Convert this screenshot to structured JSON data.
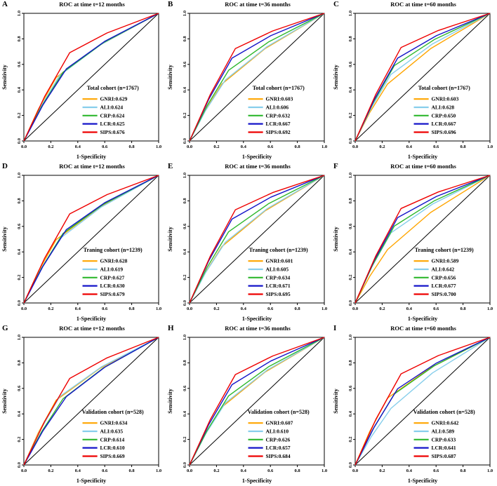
{
  "figure": {
    "background": "#ffffff"
  },
  "style": {
    "colors": {
      "GNRI": "#FFA500",
      "ALI": "#87CEEB",
      "CRP": "#2EB82E",
      "LCR": "#1414C8",
      "SIPS": "#EE0000",
      "diagonal": "#000000"
    }
  },
  "axis": {
    "xlabel": "1-Specificity",
    "ylabel": "Sensitivity",
    "ticks": [
      0,
      0.2,
      0.4,
      0.6,
      0.8,
      1.0
    ],
    "tick_labels": [
      "0.0",
      "0.2",
      "0.4",
      "0.6",
      "0.8",
      "1.0"
    ],
    "xlim": [
      0,
      1
    ],
    "ylim": [
      0,
      1
    ]
  },
  "chart_data": [
    {
      "letter": "A",
      "type": "line",
      "title": "ROC at time t=12 months",
      "cohort": "Total cohort (n=1767)",
      "series": [
        {
          "name": "GNRI",
          "auc": 0.629,
          "label": "GNRI:0.629"
        },
        {
          "name": "ALI",
          "auc": 0.624,
          "label": "ALI:0.624"
        },
        {
          "name": "CRP",
          "auc": 0.624,
          "label": "CRP:0.624"
        },
        {
          "name": "LCR",
          "auc": 0.625,
          "label": "LCR:0.625"
        },
        {
          "name": "SIPS",
          "auc": 0.676,
          "label": "SIPS:0.676"
        }
      ]
    },
    {
      "letter": "B",
      "type": "line",
      "title": "ROC at time t=36 months",
      "cohort": "Total cohort (n=1767)",
      "series": [
        {
          "name": "GNRI",
          "auc": 0.603,
          "label": "GNRI:0.603"
        },
        {
          "name": "ALI",
          "auc": 0.606,
          "label": "ALI:0.606"
        },
        {
          "name": "CRP",
          "auc": 0.632,
          "label": "CRP:0.632"
        },
        {
          "name": "LCR",
          "auc": 0.667,
          "label": "LCR:0.667"
        },
        {
          "name": "SIPS",
          "auc": 0.692,
          "label": "SIPS:0.692"
        }
      ]
    },
    {
      "letter": "C",
      "type": "line",
      "title": "ROC at time t=60 months",
      "cohort": "Total cohort (n=1767)",
      "series": [
        {
          "name": "GNRI",
          "auc": 0.603,
          "label": "GNRI:0.603"
        },
        {
          "name": "ALI",
          "auc": 0.628,
          "label": "ALI:0.628"
        },
        {
          "name": "CRP",
          "auc": 0.65,
          "label": "CRP:0.650"
        },
        {
          "name": "LCR",
          "auc": 0.667,
          "label": "LCR:0.667"
        },
        {
          "name": "SIPS",
          "auc": 0.696,
          "label": "SIPS:0.696"
        }
      ]
    },
    {
      "letter": "D",
      "type": "line",
      "title": "ROC at time t=12 months",
      "cohort": "Traning cohort (n=1239)",
      "series": [
        {
          "name": "GNRI",
          "auc": 0.628,
          "label": "GNRI:0.628"
        },
        {
          "name": "ALI",
          "auc": 0.619,
          "label": "ALI:0.619"
        },
        {
          "name": "CRP",
          "auc": 0.627,
          "label": "CRP:0.627"
        },
        {
          "name": "LCR",
          "auc": 0.63,
          "label": "LCR:0.630"
        },
        {
          "name": "SIPS",
          "auc": 0.679,
          "label": "SIPS:0.679"
        }
      ]
    },
    {
      "letter": "E",
      "type": "line",
      "title": "ROC at time t=36 months",
      "cohort": "Traning cohort (n=1239)",
      "series": [
        {
          "name": "GNRI",
          "auc": 0.601,
          "label": "GNRI:0.601"
        },
        {
          "name": "ALI",
          "auc": 0.605,
          "label": "ALI:0.605"
        },
        {
          "name": "CRP",
          "auc": 0.634,
          "label": "CRP:0.634"
        },
        {
          "name": "LCR",
          "auc": 0.671,
          "label": "LCR:0.671"
        },
        {
          "name": "SIPS",
          "auc": 0.695,
          "label": "SIPS:0.695"
        }
      ]
    },
    {
      "letter": "F",
      "type": "line",
      "title": "ROC at time t=60 months",
      "cohort": "Traning cohort (n=1239)",
      "series": [
        {
          "name": "GNRI",
          "auc": 0.589,
          "label": "GNRI:0.589"
        },
        {
          "name": "ALI",
          "auc": 0.642,
          "label": "ALI:0.642"
        },
        {
          "name": "CRP",
          "auc": 0.656,
          "label": "CRP:0.656"
        },
        {
          "name": "LCR",
          "auc": 0.677,
          "label": "LCR:0.677"
        },
        {
          "name": "SIPS",
          "auc": 0.7,
          "label": "SIPS:0.700"
        }
      ]
    },
    {
      "letter": "G",
      "type": "line",
      "title": "ROC at time t=12 months",
      "cohort": "Validation cohort (n=528)",
      "series": [
        {
          "name": "GNRI",
          "auc": 0.634,
          "label": "GNRI:0.634"
        },
        {
          "name": "ALI",
          "auc": 0.635,
          "label": "ALI:0.635"
        },
        {
          "name": "CRP",
          "auc": 0.614,
          "label": "CRP:0.614"
        },
        {
          "name": "LCR",
          "auc": 0.61,
          "label": "LCR:0.610"
        },
        {
          "name": "SIPS",
          "auc": 0.669,
          "label": "SIPS:0.669"
        }
      ]
    },
    {
      "letter": "H",
      "type": "line",
      "title": "ROC at time t=36 months",
      "cohort": "Validation cohort (n=528)",
      "series": [
        {
          "name": "GNRI",
          "auc": 0.607,
          "label": "GNRI:0.607"
        },
        {
          "name": "ALI",
          "auc": 0.61,
          "label": "ALI:0.610"
        },
        {
          "name": "CRP",
          "auc": 0.626,
          "label": "CRP:0.626"
        },
        {
          "name": "LCR",
          "auc": 0.657,
          "label": "LCR:0.657"
        },
        {
          "name": "SIPS",
          "auc": 0.684,
          "label": "SIPS:0.684"
        }
      ]
    },
    {
      "letter": "I",
      "type": "line",
      "title": "ROC at time t=60 months",
      "cohort": "Validation cohort (n=528)",
      "series": [
        {
          "name": "GNRI",
          "auc": 0.642,
          "label": "GNRI:0.642"
        },
        {
          "name": "ALI",
          "auc": 0.589,
          "label": "ALI:0.589"
        },
        {
          "name": "CRP",
          "auc": 0.633,
          "label": "CRP:0.633"
        },
        {
          "name": "LCR",
          "auc": 0.641,
          "label": "LCR:0.641"
        },
        {
          "name": "SIPS",
          "auc": 0.687,
          "label": "SIPS:0.687"
        }
      ]
    }
  ]
}
